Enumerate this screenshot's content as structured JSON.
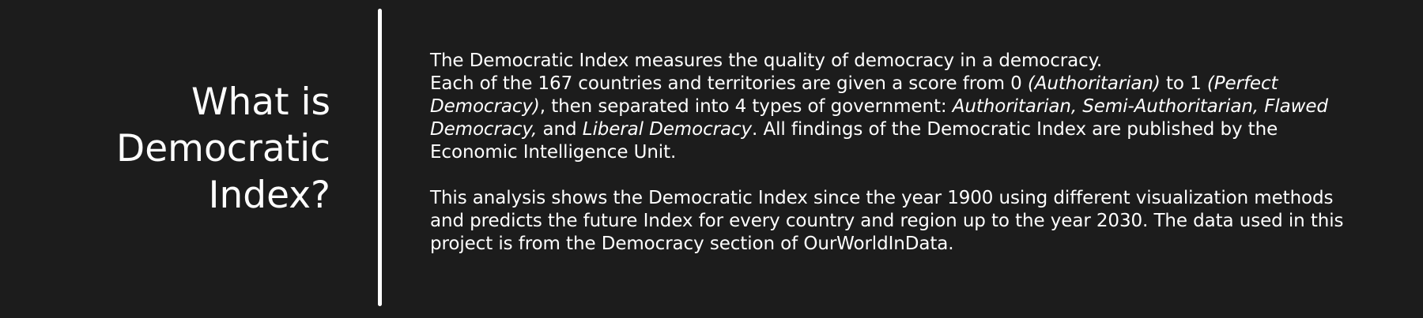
{
  "heading": {
    "line1": "What is",
    "line2": "Democratic",
    "line3": "Index?"
  },
  "intro": {
    "p1_l1": "The Democratic Index measures the quality of democracy in a democracy.",
    "p1_l2_a": "Each of the 167 countries and territories are given a score from 0 ",
    "p1_l2_b": "(Authoritarian)",
    "p1_l2_c": " to 1 ",
    "p1_l2_d": "(Perfect",
    "p1_l3_a": "Democracy)",
    "p1_l3_b": ", then separated into 4 types of government: ",
    "p1_l3_c": "Authoritarian, Semi-Authoritarian, Flawed",
    "p1_l4_a": "Democracy,",
    "p1_l4_b": " and ",
    "p1_l4_c": "Liberal Democracy",
    "p1_l4_d": ". All findings of the Democratic Index are published by the",
    "p1_l5": "Economic Intelligence Unit.",
    "p2_l1": "This analysis shows the Democratic Index since the year 1900 using different visualization methods",
    "p2_l2": "and predicts the future Index for every country and region up to the year 2030. The data used in this",
    "p2_l3": "project is from the Democracy section of OurWorldInData."
  },
  "colors": {
    "background": "#1c1c1c",
    "text": "#ffffff",
    "divider": "#ffffff"
  }
}
